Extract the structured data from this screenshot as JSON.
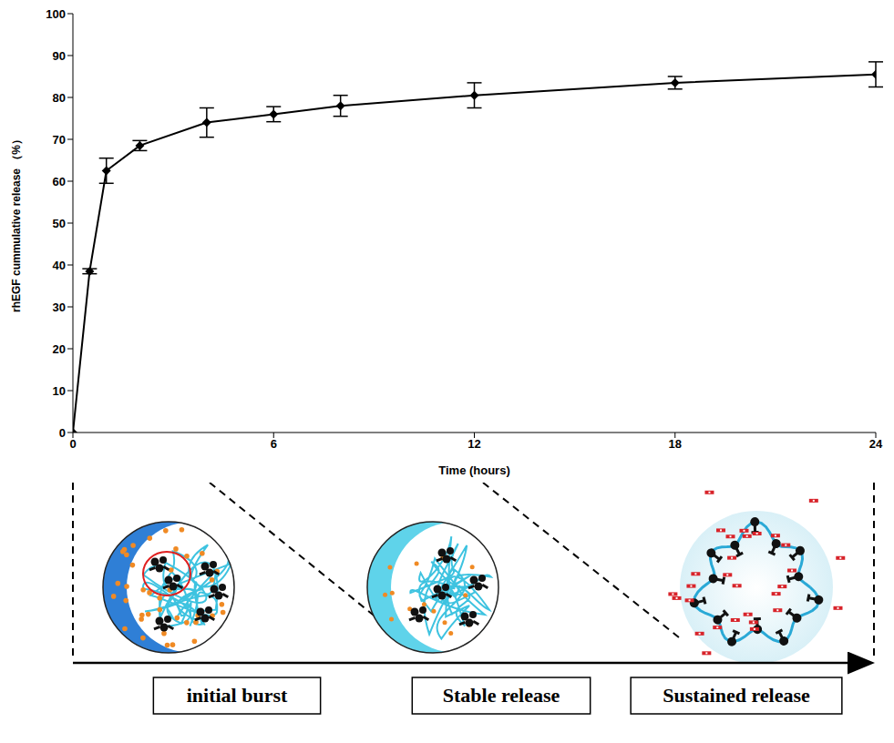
{
  "chart_data": {
    "type": "line",
    "x_label": "Time (hours)",
    "y_label": "rhEGF cummulative release （%）",
    "x": [
      0,
      0.5,
      1,
      2,
      4,
      6,
      8,
      12,
      18,
      24
    ],
    "values": [
      0,
      38.5,
      62.5,
      68.5,
      74,
      76,
      78,
      80.5,
      83.5,
      85.5
    ],
    "errors": [
      0,
      0.6,
      3,
      1.2,
      3.5,
      1.8,
      2.5,
      3,
      1.5,
      3
    ],
    "color": "#000000",
    "marker": "diamond",
    "line_style": "solid",
    "xlim": [
      0,
      24
    ],
    "xticks": [
      0,
      6,
      12,
      18,
      24
    ],
    "ylim": [
      0,
      100
    ],
    "yticks": [
      0,
      10,
      20,
      30,
      40,
      50,
      60,
      70,
      80,
      90,
      100
    ],
    "grid": false,
    "annotations": [
      "initial burst",
      "Stable release",
      "Sustained release"
    ]
  }
}
